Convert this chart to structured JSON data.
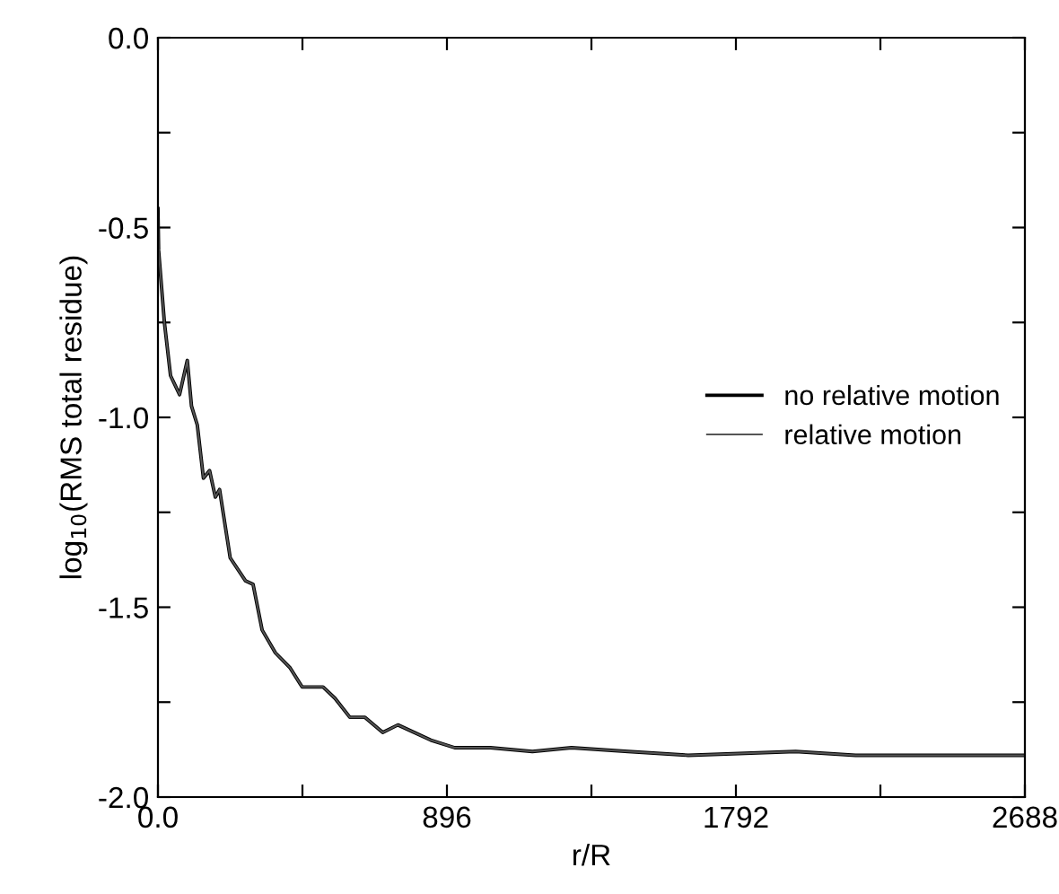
{
  "chart_data": {
    "type": "line",
    "xlabel": "r/R",
    "ylabel": "log$_{10}$(RMS total residue)",
    "xlim": [
      0,
      2688
    ],
    "ylim": [
      -2.0,
      0.0
    ],
    "xticks": [
      {
        "value": 0,
        "label": "0.0"
      },
      {
        "value": 448,
        "label": null
      },
      896,
      {
        "value": 1344,
        "label": null
      },
      1792,
      {
        "value": 2240,
        "label": null
      },
      2688
    ],
    "yticks": [
      {
        "value": -2.0,
        "label": "-2.0"
      },
      {
        "value": -1.75,
        "label": null
      },
      -1.5,
      {
        "value": -1.25,
        "label": null
      },
      {
        "value": -1.0,
        "label": "-1.0"
      },
      {
        "value": -0.75,
        "label": null
      },
      -0.5,
      {
        "value": -0.25,
        "label": null
      },
      {
        "value": 0.0,
        "label": "0.0"
      }
    ],
    "legend": "right",
    "grid": false,
    "series": [
      {
        "name": "no relative motion",
        "color": "#000000",
        "x": [
          0,
          2,
          20,
          39,
          67,
          91,
          104,
          122,
          141,
          160,
          178,
          191,
          224,
          271,
          295,
          323,
          364,
          410,
          447,
          512,
          549,
          595,
          642,
          697,
          744,
          846,
          920,
          1031,
          1161,
          1282,
          1458,
          1644,
          1977,
          2163,
          2688
        ],
        "values": [
          -0.45,
          -0.56,
          -0.75,
          -0.89,
          -0.94,
          -0.85,
          -0.97,
          -1.02,
          -1.16,
          -1.14,
          -1.21,
          -1.19,
          -1.37,
          -1.43,
          -1.44,
          -1.56,
          -1.62,
          -1.66,
          -1.71,
          -1.71,
          -1.74,
          -1.79,
          -1.79,
          -1.83,
          -1.81,
          -1.85,
          -1.87,
          -1.87,
          -1.88,
          -1.87,
          -1.88,
          -1.89,
          -1.88,
          -1.89,
          -1.89
        ]
      },
      {
        "name": "relative motion",
        "color": "#555555",
        "x": [
          0,
          2,
          20,
          39,
          67,
          91,
          104,
          122,
          141,
          160,
          178,
          191,
          224,
          271,
          295,
          323,
          364,
          410,
          447,
          512,
          549,
          595,
          642,
          697,
          744,
          846,
          920,
          1031,
          1161,
          1282,
          1458,
          1644,
          1977,
          2163,
          2688
        ],
        "values": [
          -0.45,
          -0.56,
          -0.75,
          -0.89,
          -0.94,
          -0.85,
          -0.97,
          -1.02,
          -1.16,
          -1.14,
          -1.21,
          -1.19,
          -1.37,
          -1.43,
          -1.44,
          -1.56,
          -1.62,
          -1.66,
          -1.71,
          -1.71,
          -1.74,
          -1.79,
          -1.79,
          -1.83,
          -1.81,
          -1.85,
          -1.87,
          -1.87,
          -1.88,
          -1.87,
          -1.88,
          -1.89,
          -1.88,
          -1.89,
          -1.89
        ]
      }
    ]
  }
}
